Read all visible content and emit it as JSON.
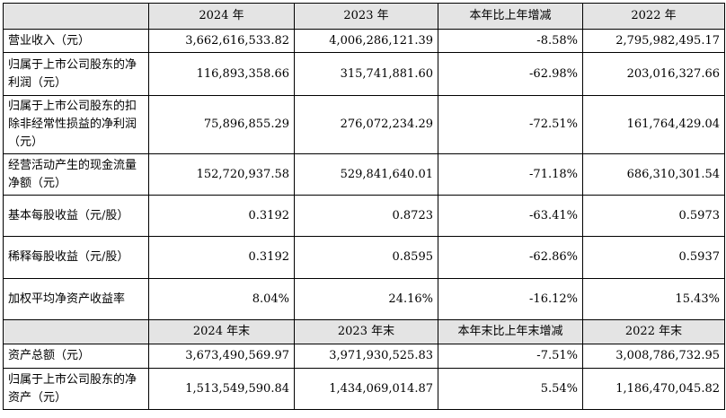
{
  "headers": [
    "2024 年",
    "2023 年",
    "本年比上年增减",
    "2022 年"
  ],
  "rows": [
    {
      "label": "营业收入（元）",
      "values": [
        "3,662,616,533.82",
        "4,006,286,121.39",
        "-8.58%",
        "2,795,982,495.17"
      ]
    },
    {
      "label": "归属于上市公司股东的净利润（元）",
      "values": [
        "116,893,358.66",
        "315,741,881.60",
        "-62.98%",
        "203,016,327.66"
      ]
    },
    {
      "label": "归属于上市公司股东的扣除非经常性损益的净利润（元）",
      "values": [
        "75,896,855.29",
        "276,072,234.29",
        "-72.51%",
        "161,764,429.04"
      ]
    },
    {
      "label": "经营活动产生的现金流量净额（元）",
      "values": [
        "152,720,937.58",
        "529,841,640.01",
        "-71.18%",
        "686,310,301.54"
      ]
    },
    {
      "label": "基本每股收益（元/股）",
      "values": [
        "0.3192",
        "0.8723",
        "-63.41%",
        "0.5973"
      ]
    },
    {
      "label": "稀释每股收益（元/股）",
      "values": [
        "0.3192",
        "0.8595",
        "-62.86%",
        "0.5937"
      ]
    },
    {
      "label": "加权平均净资产收益率",
      "values": [
        "8.04%",
        "24.16%",
        "-16.12%",
        "15.43%"
      ]
    }
  ],
  "headers2": [
    "2024 年末",
    "2023 年末",
    "本年末比上年末增减",
    "2022 年末"
  ],
  "rows2": [
    {
      "label": "资产总额（元）",
      "values": [
        "3,673,490,569.97",
        "3,971,930,525.83",
        "-7.51%",
        "3,008,786,732.95"
      ]
    },
    {
      "label": "归属于上市公司股东的净资产（元）",
      "values": [
        "1,513,549,590.84",
        "1,434,069,014.87",
        "5.54%",
        "1,186,470,045.82"
      ]
    }
  ]
}
